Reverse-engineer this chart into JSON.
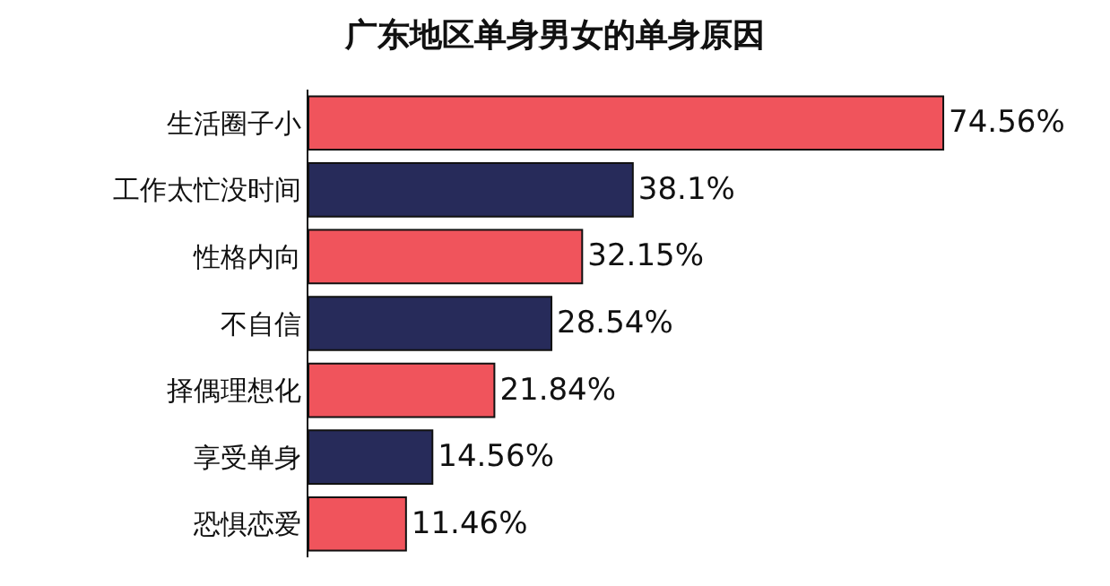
{
  "chart_data": {
    "type": "bar",
    "orientation": "horizontal",
    "title": "广东地区单身男女的单身原因",
    "categories": [
      "生活圈子小",
      "工作太忙没时间",
      "性格内向",
      "不自信",
      "择偶理想化",
      "享受单身",
      "恐惧恋爱"
    ],
    "values": [
      74.56,
      38.1,
      32.15,
      28.54,
      21.84,
      14.56,
      11.46
    ],
    "colors": [
      "#f0545c",
      "#272b5a",
      "#f0545c",
      "#272b5a",
      "#f0545c",
      "#272b5a",
      "#f0545c"
    ],
    "value_labels": [
      "74.56%",
      "38.1%",
      "32.15%",
      "28.54%",
      "21.84%",
      "14.56%",
      "11.46%"
    ]
  }
}
